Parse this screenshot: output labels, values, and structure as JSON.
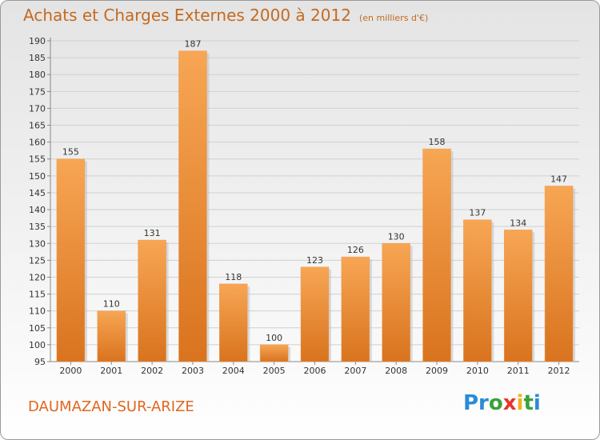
{
  "header": {
    "title": "Achats et Charges Externes 2000 à 2012",
    "subtitle": "(en milliers d'€)"
  },
  "footer": {
    "commune": "DAUMAZAN-SUR-ARIZE",
    "logo": "Proxiti"
  },
  "colors": {
    "bar_top": "#f7a654",
    "bar_bottom": "#d9731e",
    "title": "#c46a20",
    "commune": "#e0661f"
  },
  "chart_data": {
    "type": "bar",
    "title": "Achats et Charges Externes 2000 à 2012",
    "subtitle": "(en milliers d'€)",
    "categories": [
      "2000",
      "2001",
      "2002",
      "2003",
      "2004",
      "2005",
      "2006",
      "2007",
      "2008",
      "2009",
      "2010",
      "2011",
      "2012"
    ],
    "values": [
      155,
      110,
      131,
      187,
      118,
      100,
      123,
      126,
      130,
      158,
      137,
      134,
      147
    ],
    "xlabel": "",
    "ylabel": "",
    "ylim": [
      95,
      190
    ],
    "yticks": [
      95,
      100,
      105,
      110,
      115,
      120,
      125,
      130,
      135,
      140,
      145,
      150,
      155,
      160,
      165,
      170,
      175,
      180,
      185,
      190
    ],
    "grid": true,
    "legend": "none"
  }
}
